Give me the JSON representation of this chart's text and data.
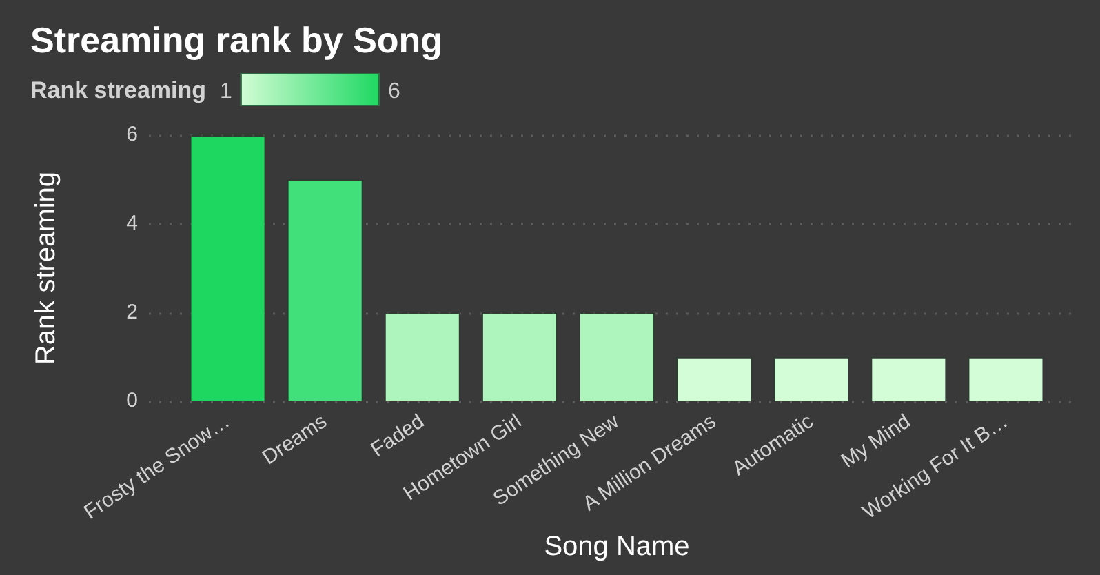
{
  "chart_data": {
    "type": "bar",
    "title": "Streaming rank by Song",
    "xlabel": "Song Name",
    "ylabel": "Rank streaming",
    "clabel": "Rank streaming",
    "categories": [
      "Frosty the Snow…",
      "Dreams",
      "Faded",
      "Hometown Girl",
      "Something New",
      "A Million Dreams",
      "Automatic",
      "My Mind",
      "Working For It B…"
    ],
    "values": [
      6,
      5,
      2,
      2,
      2,
      1,
      1,
      1,
      1
    ],
    "colors": [
      "#1ed760",
      "#41e07a",
      "#aef5bd",
      "#aef5bd",
      "#aef5bd",
      "#d2fdd6",
      "#d2fdd6",
      "#d2fdd6",
      "#d2fdd6"
    ],
    "ylim": [
      0,
      6
    ],
    "yticks": [
      0,
      2,
      4,
      6
    ],
    "clim": [
      1,
      6
    ],
    "cticks": [
      1,
      6
    ],
    "grid": "y"
  }
}
